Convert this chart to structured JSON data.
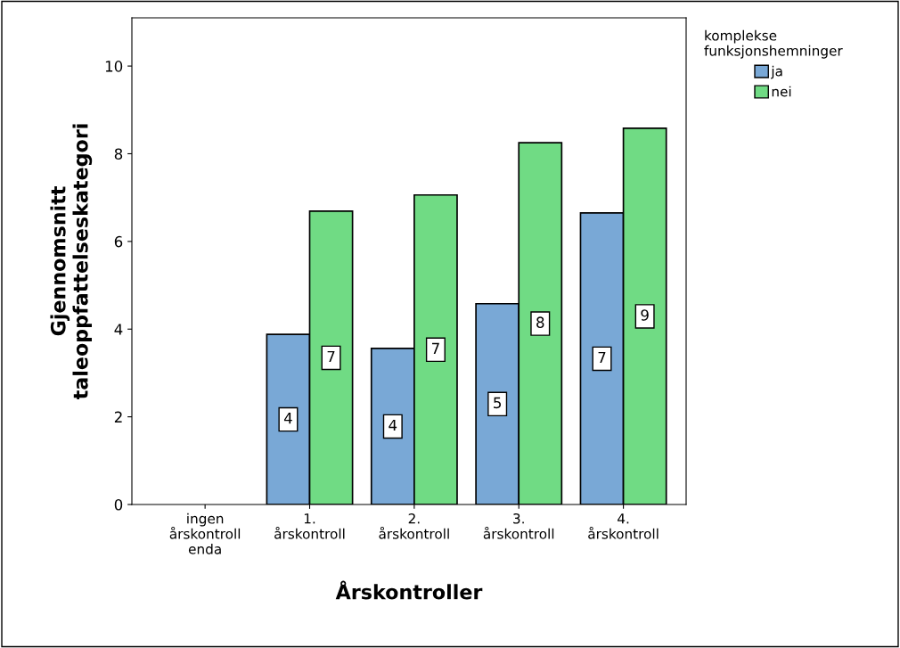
{
  "chart_data": {
    "type": "bar",
    "xlabel": "Årskontroller",
    "ylabel": "Gjennomsnitt\ntaleoppfattelseskategori",
    "legend_title": "komplekse\nfunksjonshemninger",
    "categories": [
      "ingen\nårskontroll\nenda",
      "1.\nårskontroll",
      "2.\nårskontroll",
      "3.\nårskontroll",
      "4.\nårskontroll"
    ],
    "series": [
      {
        "name": "ja",
        "color": "#79a8d6",
        "values": [
          null,
          3.88,
          3.56,
          4.58,
          6.65
        ],
        "value_labels": [
          null,
          "4",
          "4",
          "5",
          "7"
        ]
      },
      {
        "name": "nei",
        "color": "#70db84",
        "values": [
          null,
          6.69,
          7.06,
          8.25,
          8.58
        ],
        "value_labels": [
          null,
          "7",
          "7",
          "8",
          "9"
        ]
      }
    ],
    "ylim": [
      0,
      11.1
    ],
    "yticks": [
      0,
      2,
      4,
      6,
      8,
      10
    ],
    "grid": false,
    "legend": "top right"
  }
}
